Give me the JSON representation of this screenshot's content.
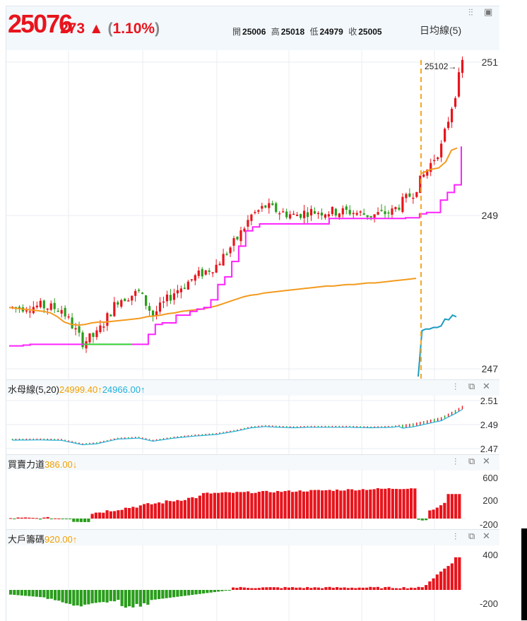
{
  "header": {
    "price": "25076",
    "change": "273 ▲",
    "change_pct_open": "(",
    "change_pct": "1.10%",
    "change_pct_close": ")",
    "open_label": "開",
    "open_value": "25006",
    "high_label": "高",
    "high_value": "25018",
    "low_label": "低",
    "low_value": "24979",
    "close_label": "收",
    "close_value": "25005",
    "ma_label": "日均線(5)",
    "up_color": "#e8141c"
  },
  "toolbar_icons": [
    "settings-sliders-icon",
    "window-icon"
  ],
  "panel_icons": [
    "settings-sliders-icon",
    "restore-icon",
    "close-icon"
  ],
  "main_chart": {
    "y_ticks": [
      "251",
      "249",
      "247"
    ],
    "y_tick_values": [
      25100,
      24900,
      24700
    ],
    "annotation": "25102→",
    "colors": {
      "up": "#e8141c",
      "down": "#2a9d1c",
      "ma_orange": "#f39a1e",
      "line_magenta": "#ff22ff",
      "line_green": "#33dd33",
      "line_blue": "#1b9cc0",
      "divider": "#f5a623"
    }
  },
  "indicator1": {
    "name": "水母線(5,20)",
    "value1": "24999.40",
    "value2": "24966.00",
    "arrow1": "↑",
    "arrow2": "↑",
    "y_ticks": [
      "2.51",
      "2.49",
      "2.47"
    ]
  },
  "indicator2": {
    "name": "買賣力道",
    "value": "386.00",
    "arrow": "↓",
    "y_ticks": [
      "600",
      "200",
      "-200"
    ]
  },
  "indicator3": {
    "name": "大戶籌碼",
    "value": "920.00",
    "arrow": "↑",
    "y_ticks": [
      "400",
      "-200"
    ]
  },
  "chart_data": {
    "type": "candlestick",
    "ylim": [
      24690,
      25110
    ],
    "series": [
      {
        "name": "ma_orange",
        "values": [
          24780,
          24779,
          24778,
          24777,
          24776,
          24775,
          24773,
          24768,
          24761,
          24758,
          24757,
          24758,
          24760,
          24761,
          24761,
          24762,
          24763,
          24764,
          24765,
          24766,
          24768,
          24769,
          24770,
          24772,
          24773,
          24775,
          24776,
          24777,
          24778,
          24780,
          24782,
          24785,
          24788,
          24791,
          24794,
          24796,
          24797,
          24799,
          24800,
          24801,
          24802,
          24803,
          24804,
          24805,
          24806,
          24807,
          24808,
          24808,
          24809,
          24810,
          24810,
          24811,
          24812,
          24812,
          24813,
          24814,
          24815,
          24816,
          24817,
          24818
        ]
      },
      {
        "name": "line_magenta",
        "values": [
          24730,
          24730,
          24731,
          24732,
          24732,
          24732,
          24732,
          24732,
          24732,
          24732,
          24732,
          24732,
          24732,
          24732,
          24732,
          24732,
          24732,
          24732,
          24732,
          24732,
          24745,
          24758,
          24760,
          24760,
          24770,
          24770,
          24775,
          24778,
          24780,
          24790,
          24810,
          24820,
          24840,
          24860,
          24880,
          24885,
          24889,
          24889,
          24889,
          24889,
          24889,
          24889,
          24889,
          24889,
          24889,
          24889,
          24896,
          24896,
          24896,
          24896,
          24896,
          24896,
          24896,
          24896,
          24896,
          24896,
          24896,
          24897,
          24897,
          24902,
          24904,
          24904,
          24920,
          24930,
          24940,
          24990
        ]
      },
      {
        "name": "line_blue",
        "values": [
          24690,
          24750,
          24752,
          24752,
          24754,
          24754,
          24756,
          24765,
          24764,
          24770,
          24768
        ]
      }
    ]
  }
}
